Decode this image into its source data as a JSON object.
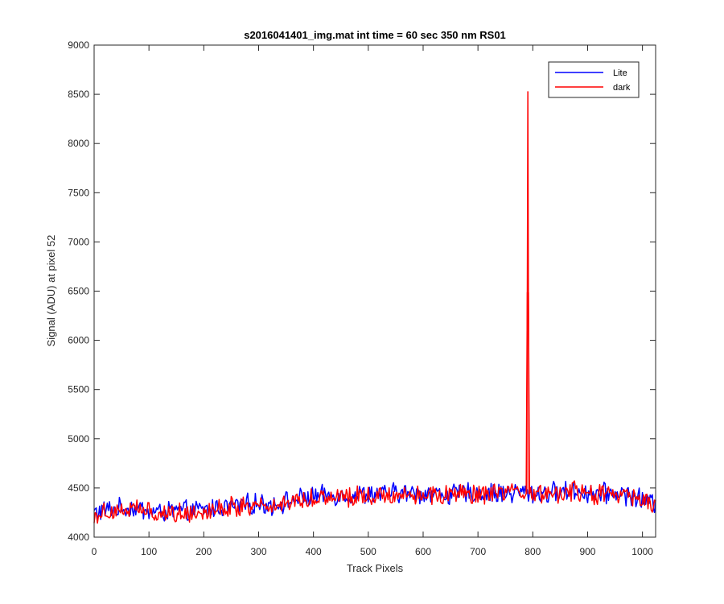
{
  "chart_data": {
    "type": "line",
    "title": "s2016041401_img.mat int time = 60 sec  350 nm RS01",
    "xlabel": "Track Pixels",
    "ylabel": "Signal (ADU) at pixel 52",
    "xlim": [
      0,
      1024
    ],
    "ylim": [
      4000,
      9000
    ],
    "xticks": [
      "0",
      "100",
      "200",
      "300",
      "400",
      "500",
      "600",
      "700",
      "800",
      "900",
      "1000"
    ],
    "yticks": [
      "4000",
      "4500",
      "5000",
      "5500",
      "6000",
      "6500",
      "7000",
      "7500",
      "8000",
      "8500",
      "9000"
    ],
    "grid": false,
    "legend_position": "top-right",
    "series": [
      {
        "name": "Lite",
        "color": "#0000ff",
        "x": [
          0,
          25,
          50,
          75,
          100,
          125,
          150,
          175,
          200,
          225,
          250,
          275,
          300,
          325,
          350,
          375,
          400,
          425,
          450,
          475,
          500,
          525,
          550,
          575,
          600,
          625,
          650,
          675,
          700,
          725,
          750,
          775,
          790,
          800,
          825,
          850,
          875,
          900,
          925,
          950,
          975,
          1000,
          1024
        ],
        "y": [
          4250,
          4280,
          4290,
          4300,
          4260,
          4250,
          4270,
          4260,
          4280,
          4300,
          4310,
          4330,
          4340,
          4330,
          4360,
          4390,
          4410,
          4420,
          4430,
          4420,
          4440,
          4430,
          4450,
          4440,
          4450,
          4440,
          4430,
          4450,
          4440,
          4450,
          4440,
          4460,
          4450,
          4440,
          4450,
          4460,
          4470,
          4450,
          4440,
          4450,
          4430,
          4380,
          4340
        ]
      },
      {
        "name": "dark",
        "color": "#ff0000",
        "x": [
          0,
          25,
          50,
          75,
          100,
          125,
          150,
          175,
          200,
          225,
          250,
          275,
          300,
          325,
          350,
          375,
          400,
          425,
          450,
          475,
          500,
          525,
          550,
          575,
          600,
          625,
          650,
          675,
          700,
          725,
          750,
          775,
          789,
          791,
          793,
          800,
          825,
          850,
          875,
          900,
          925,
          950,
          975,
          1000,
          1024
        ],
        "y": [
          4220,
          4270,
          4280,
          4290,
          4250,
          4240,
          4250,
          4250,
          4270,
          4290,
          4300,
          4320,
          4330,
          4320,
          4350,
          4380,
          4400,
          4410,
          4420,
          4410,
          4430,
          4420,
          4440,
          4430,
          4440,
          4430,
          4420,
          4440,
          4430,
          4440,
          4430,
          4450,
          4440,
          8530,
          4440,
          4430,
          4440,
          4450,
          4460,
          4440,
          4430,
          4440,
          4420,
          4370,
          4330
        ]
      }
    ]
  }
}
